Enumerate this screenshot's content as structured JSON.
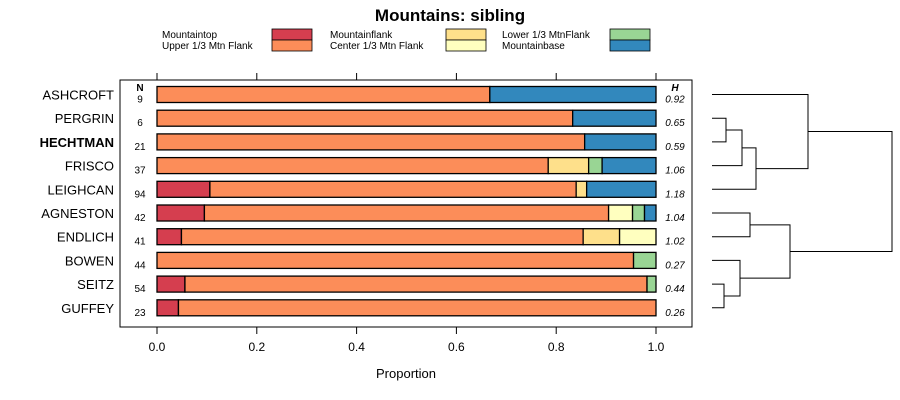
{
  "chart_data": {
    "type": "bar",
    "stacked": true,
    "orientation": "horizontal",
    "title": "Mountains: sibling",
    "xlabel": "Proportion",
    "xlim": [
      0,
      1
    ],
    "xticks": [
      "0.0",
      "0.2",
      "0.4",
      "0.6",
      "0.8",
      "1.0"
    ],
    "n_header": "N",
    "h_header": "H",
    "legend": [
      {
        "name": "Mountaintop",
        "color": "#d53e4f"
      },
      {
        "name": "Upper 1/3 Mtn Flank",
        "color": "#fc8d59"
      },
      {
        "name": "Mountainflank",
        "color": "#fee08b"
      },
      {
        "name": "Center 1/3 Mtn Flank",
        "color": "#ffffbf"
      },
      {
        "name": "Lower 1/3 MtnFlank",
        "color": "#99d594"
      },
      {
        "name": "Mountainbase",
        "color": "#3288bd"
      }
    ],
    "rows": [
      {
        "label": "ASHCROFT",
        "bold": false,
        "n": "9",
        "h": "0.92",
        "values": [
          0,
          0.667,
          0,
          0,
          0,
          0.333
        ]
      },
      {
        "label": "PERGRIN",
        "bold": false,
        "n": "6",
        "h": "0.65",
        "values": [
          0,
          0.833,
          0,
          0,
          0,
          0.167
        ]
      },
      {
        "label": "HECHTMAN",
        "bold": true,
        "n": "21",
        "h": "0.59",
        "values": [
          0,
          0.857,
          0,
          0,
          0,
          0.143
        ]
      },
      {
        "label": "FRISCO",
        "bold": false,
        "n": "37",
        "h": "1.06",
        "values": [
          0,
          0.784,
          0.081,
          0,
          0.027,
          0.108
        ]
      },
      {
        "label": "LEIGHCAN",
        "bold": false,
        "n": "94",
        "h": "1.18",
        "values": [
          0.106,
          0.734,
          0.021,
          0,
          0,
          0.139
        ]
      },
      {
        "label": "AGNESTON",
        "bold": false,
        "n": "42",
        "h": "1.04",
        "values": [
          0.095,
          0.81,
          0,
          0.048,
          0.024,
          0.023
        ]
      },
      {
        "label": "ENDLICH",
        "bold": false,
        "n": "41",
        "h": "1.02",
        "values": [
          0.049,
          0.805,
          0.073,
          0.073,
          0,
          0
        ]
      },
      {
        "label": "BOWEN",
        "bold": false,
        "n": "44",
        "h": "0.27",
        "values": [
          0,
          0.955,
          0,
          0,
          0.045,
          0
        ]
      },
      {
        "label": "SEITZ",
        "bold": false,
        "n": "54",
        "h": "0.44",
        "values": [
          0.056,
          0.926,
          0,
          0,
          0.018,
          0
        ]
      },
      {
        "label": "GUFFEY",
        "bold": false,
        "n": "23",
        "h": "0.26",
        "values": [
          0.043,
          0.957,
          0,
          0,
          0,
          0
        ]
      }
    ]
  }
}
